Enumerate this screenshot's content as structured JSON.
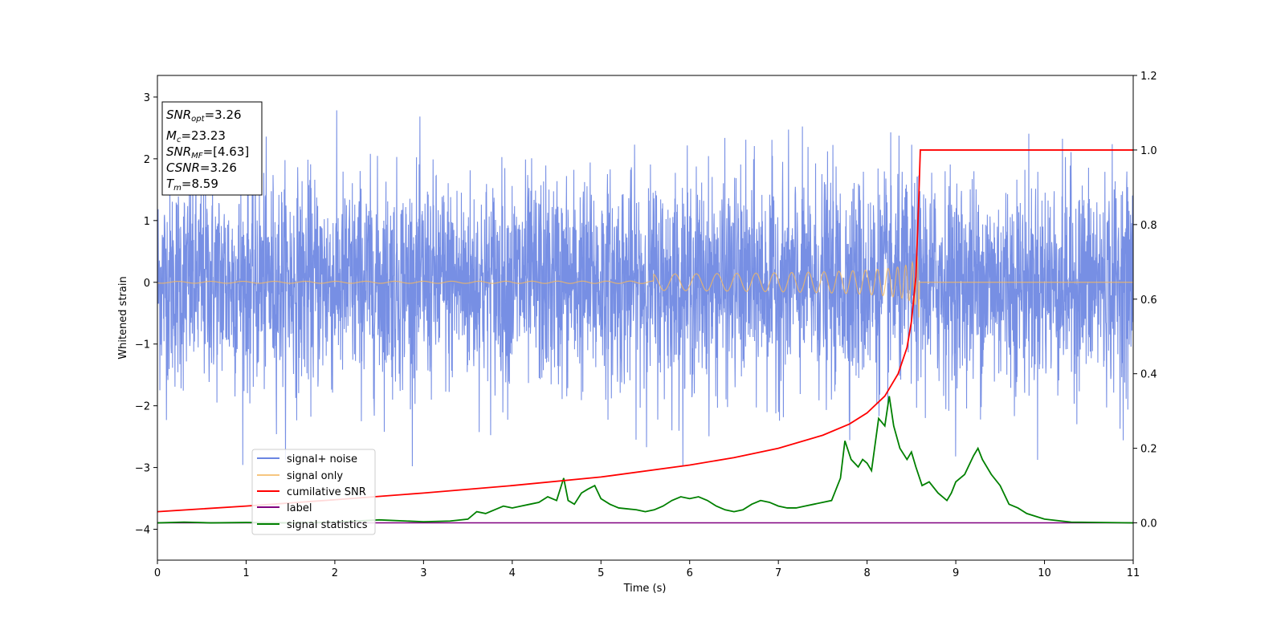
{
  "chart_data": {
    "type": "line",
    "xlabel": "Time (s)",
    "ylabel_left": "Whitened strain",
    "xlim": [
      0,
      11
    ],
    "ylim_left": [
      -4.5,
      3.35
    ],
    "ylim_right": [
      -0.1,
      1.2
    ],
    "x_ticks": [
      0,
      1,
      2,
      3,
      4,
      5,
      6,
      7,
      8,
      9,
      10,
      11
    ],
    "y_left_ticks": [
      3,
      2,
      1,
      0,
      -1,
      -2,
      -3,
      -4
    ],
    "y_right_ticks": [
      1.2,
      1.0,
      0.8,
      0.6,
      0.4,
      0.2,
      0.0
    ],
    "legend_position": "lower-left",
    "legend": [
      "signal+ noise",
      "signal only",
      "cumilative SNR",
      "label",
      "signal statistics"
    ],
    "colors": {
      "signal_noise": "#6b86e2",
      "signal_only": "#f4b860",
      "cumulative_snr": "#ff0000",
      "label": "#800080",
      "signal_statistics": "#008000"
    },
    "annotation": {
      "snr_opt": {
        "base": "SNR",
        "sub": "opt",
        "value": "=3.26"
      },
      "mc": {
        "base": "M",
        "sub": "c",
        "value": "=23.23"
      },
      "snr_mf": {
        "base": "SNR",
        "sub": "MF",
        "value": "=[4.63]"
      },
      "csnr": {
        "base": "CSNR",
        "value": "=3.26"
      },
      "tm": {
        "base": "T",
        "sub": "m",
        "value": "=8.59"
      }
    },
    "series": [
      {
        "name": "signal+ noise",
        "axis": "left",
        "description_range": [
          -3.0,
          3.0
        ],
        "style": "dense-noise"
      },
      {
        "name": "signal only",
        "axis": "left",
        "chirp_end_time": 8.59,
        "peak_amplitude": 0.55
      },
      {
        "name": "cumilative SNR",
        "axis": "right",
        "x": [
          0,
          1,
          2,
          3,
          4,
          5,
          6,
          6.5,
          7,
          7.5,
          7.8,
          8.0,
          8.2,
          8.35,
          8.45,
          8.5,
          8.55,
          8.58,
          8.6,
          11
        ],
        "y": [
          0.03,
          0.045,
          0.062,
          0.08,
          0.1,
          0.123,
          0.155,
          0.175,
          0.2,
          0.235,
          0.265,
          0.295,
          0.34,
          0.4,
          0.47,
          0.54,
          0.66,
          0.85,
          1.0,
          1.0
        ]
      },
      {
        "name": "label",
        "axis": "right",
        "x": [
          0,
          11
        ],
        "y": [
          0,
          0
        ]
      },
      {
        "name": "signal statistics",
        "axis": "right",
        "x": [
          0,
          0.3,
          0.6,
          1.0,
          1.5,
          2.0,
          2.5,
          3.0,
          3.3,
          3.5,
          3.6,
          3.7,
          3.8,
          3.9,
          4.0,
          4.1,
          4.2,
          4.3,
          4.4,
          4.5,
          4.58,
          4.63,
          4.7,
          4.78,
          4.85,
          4.93,
          5.0,
          5.1,
          5.2,
          5.4,
          5.5,
          5.6,
          5.7,
          5.8,
          5.9,
          6.0,
          6.1,
          6.2,
          6.3,
          6.4,
          6.5,
          6.6,
          6.7,
          6.8,
          6.9,
          7.0,
          7.1,
          7.2,
          7.3,
          7.4,
          7.5,
          7.6,
          7.7,
          7.75,
          7.82,
          7.9,
          7.95,
          8.0,
          8.05,
          8.13,
          8.2,
          8.25,
          8.3,
          8.37,
          8.45,
          8.5,
          8.55,
          8.62,
          8.7,
          8.8,
          8.9,
          8.95,
          9.0,
          9.1,
          9.2,
          9.25,
          9.3,
          9.4,
          9.5,
          9.6,
          9.7,
          9.8,
          10.0,
          10.3,
          11.0
        ],
        "y": [
          0.0,
          0.002,
          0.0,
          0.001,
          0.0,
          0.002,
          0.008,
          0.003,
          0.005,
          0.01,
          0.03,
          0.025,
          0.035,
          0.045,
          0.04,
          0.045,
          0.05,
          0.055,
          0.07,
          0.06,
          0.12,
          0.06,
          0.05,
          0.08,
          0.09,
          0.1,
          0.065,
          0.05,
          0.04,
          0.035,
          0.03,
          0.035,
          0.045,
          0.06,
          0.07,
          0.065,
          0.07,
          0.06,
          0.045,
          0.035,
          0.03,
          0.035,
          0.05,
          0.06,
          0.055,
          0.045,
          0.04,
          0.04,
          0.045,
          0.05,
          0.055,
          0.06,
          0.12,
          0.22,
          0.17,
          0.15,
          0.17,
          0.16,
          0.14,
          0.28,
          0.26,
          0.34,
          0.26,
          0.2,
          0.17,
          0.19,
          0.15,
          0.1,
          0.11,
          0.08,
          0.06,
          0.08,
          0.11,
          0.13,
          0.18,
          0.2,
          0.17,
          0.13,
          0.1,
          0.05,
          0.04,
          0.025,
          0.01,
          0.002,
          0.0
        ]
      }
    ]
  }
}
